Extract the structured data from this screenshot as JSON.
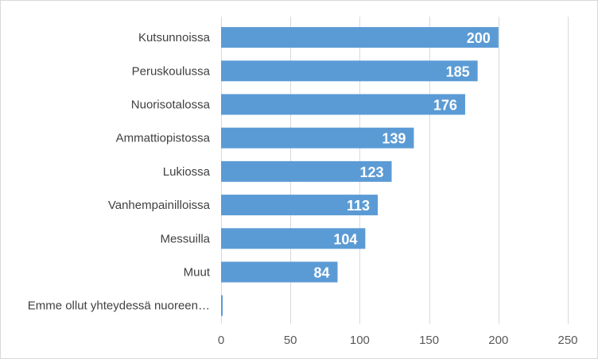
{
  "chart_data": {
    "type": "bar",
    "orientation": "horizontal",
    "categories": [
      "Kutsunnoissa",
      "Peruskoulussa",
      "Nuorisotalossa",
      "Ammattiopistossa",
      "Lukiossa",
      "Vanhempainilloissa",
      "Messuilla",
      "Muut",
      "Emme ollut yhteydessä nuoreen…"
    ],
    "values": [
      200,
      185,
      176,
      139,
      123,
      113,
      104,
      84,
      1
    ],
    "data_labels": [
      "200",
      "185",
      "176",
      "139",
      "123",
      "113",
      "104",
      "84",
      ""
    ],
    "xlim": [
      0,
      250
    ],
    "xticks": [
      0,
      50,
      100,
      150,
      200,
      250
    ],
    "grid": true,
    "bar_color": "#5b9bd5",
    "title": "",
    "xlabel": "",
    "ylabel": ""
  }
}
